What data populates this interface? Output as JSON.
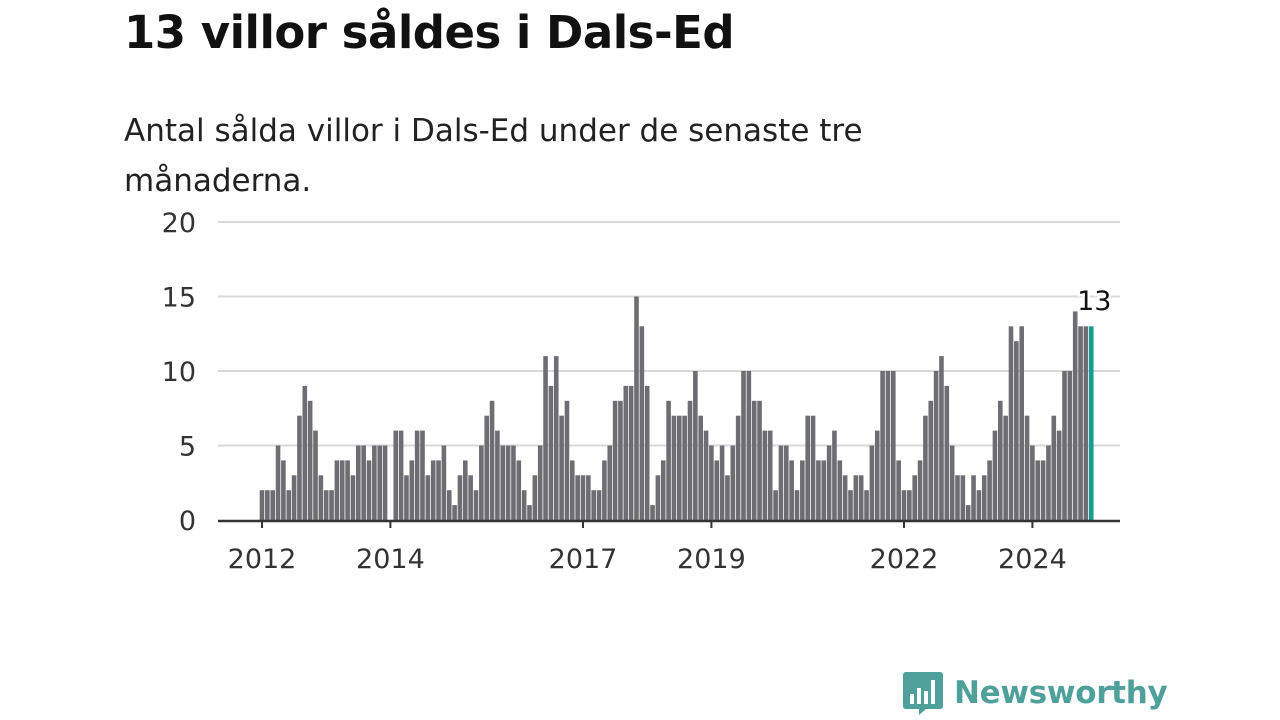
{
  "title": "13 villor såldes i Dals-Ed",
  "subtitle": "Antal sålda villor i Dals-Ed under de senaste tre månaderna.",
  "brand": {
    "name": "Newsworthy",
    "color": "#4fa09a",
    "logo_icon": "bar-chart-speech-bubble-icon"
  },
  "colors": {
    "bar": "#6e6d73",
    "highlight": "#1a9a92",
    "grid": "#d9d9d9",
    "axis": "#333333"
  },
  "chart_data": {
    "type": "bar",
    "y_ticks": [
      "0",
      "5",
      "10",
      "15",
      "20"
    ],
    "ylim": [
      0,
      20
    ],
    "x_tick_labels": [
      {
        "label": "2012",
        "date": "2012-01"
      },
      {
        "label": "2014",
        "date": "2014-01"
      },
      {
        "label": "2017",
        "date": "2017-01"
      },
      {
        "label": "2019",
        "date": "2019-01"
      },
      {
        "label": "2022",
        "date": "2022-01"
      },
      {
        "label": "2024",
        "date": "2024-01"
      }
    ],
    "series": [
      {
        "start": "2012-01",
        "values": [
          2,
          2,
          2,
          5,
          4,
          2,
          3,
          7,
          9,
          8,
          6,
          3,
          2,
          2,
          4,
          4,
          4,
          3,
          5,
          5,
          4,
          5,
          5,
          5,
          0,
          6,
          6,
          3,
          4,
          6,
          6,
          3,
          4,
          4,
          5,
          2,
          1,
          3,
          4,
          3,
          2,
          5,
          7,
          8,
          6,
          5,
          5,
          5,
          4,
          2,
          1,
          3,
          5,
          11,
          9,
          11,
          7,
          8,
          4,
          3,
          3,
          3,
          2,
          2,
          4,
          5,
          8,
          8,
          9,
          9,
          15,
          13,
          9,
          1,
          3,
          4,
          8,
          7,
          7,
          7,
          8,
          10,
          7,
          6,
          5,
          4,
          5,
          3,
          5,
          7,
          10,
          10,
          8,
          8,
          6,
          6,
          2,
          5,
          5,
          4,
          2,
          4,
          7,
          7,
          4,
          4,
          5,
          6,
          4,
          3,
          2,
          3,
          3,
          2,
          5,
          6,
          10,
          10,
          10,
          4,
          2,
          2,
          3,
          4,
          7,
          8,
          10,
          11,
          9,
          5,
          3,
          3,
          1,
          3,
          2,
          3,
          4,
          6,
          8,
          7,
          13,
          12,
          13,
          7,
          5,
          4,
          4,
          5,
          7,
          6,
          10,
          10,
          14,
          13,
          13,
          13
        ]
      }
    ],
    "highlight_label": "13"
  }
}
